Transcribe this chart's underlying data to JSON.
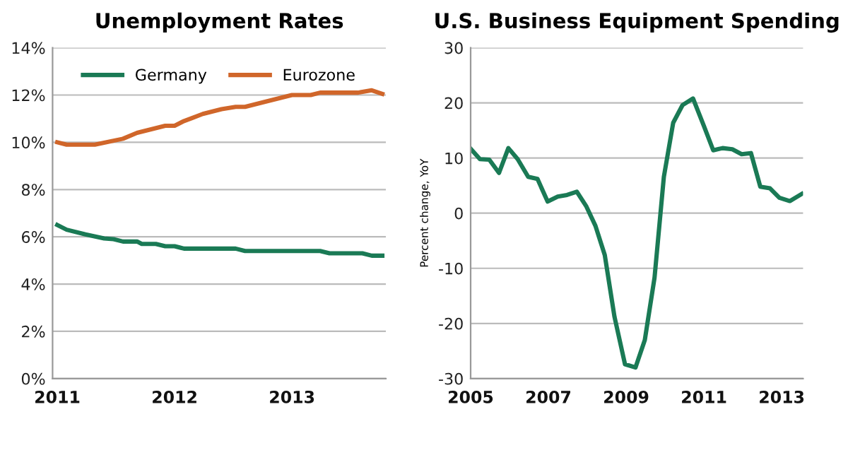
{
  "chart_data": [
    {
      "type": "line",
      "title": "Unemployment Rates",
      "legend": "top",
      "grid": "y",
      "line_style": "solid",
      "marker": "none",
      "xlim": [
        2010.96,
        2013.8
      ],
      "xticks": [
        2011,
        2012,
        2013
      ],
      "ylim": [
        0,
        14
      ],
      "yticks": [
        {
          "value": 0,
          "label": "0%"
        },
        {
          "value": 2,
          "label": "2%"
        },
        {
          "value": 4,
          "label": "4%"
        },
        {
          "value": 6,
          "label": "6%"
        },
        {
          "value": 8,
          "label": "8%"
        },
        {
          "value": 10,
          "label": "10%"
        },
        {
          "value": 12,
          "label": "12%"
        },
        {
          "value": 14,
          "label": "14%"
        }
      ],
      "series": [
        {
          "name": "Germany",
          "color": "#1a7a55",
          "x": [
            2011.0,
            2011.08,
            2011.24,
            2011.4,
            2011.48,
            2011.56,
            2011.68,
            2011.72,
            2011.84,
            2011.92,
            2012.0,
            2012.08,
            2012.52,
            2012.6,
            2013.24,
            2013.32,
            2013.6,
            2013.68,
            2013.77
          ],
          "values": [
            6.5,
            6.3,
            6.1,
            5.93,
            5.9,
            5.8,
            5.8,
            5.7,
            5.7,
            5.6,
            5.6,
            5.5,
            5.5,
            5.4,
            5.4,
            5.3,
            5.3,
            5.2,
            5.2
          ]
        },
        {
          "name": "Eurozone",
          "color": "#d0662a",
          "x": [
            2011.0,
            2011.08,
            2011.32,
            2011.56,
            2011.68,
            2011.8,
            2011.92,
            2012.0,
            2012.08,
            2012.16,
            2012.24,
            2012.4,
            2012.52,
            2012.6,
            2012.76,
            2012.88,
            2013.0,
            2013.16,
            2013.24,
            2013.56,
            2013.68,
            2013.77
          ],
          "values": [
            10.0,
            9.9,
            9.9,
            10.15,
            10.4,
            10.55,
            10.7,
            10.7,
            10.9,
            11.05,
            11.2,
            11.4,
            11.5,
            11.5,
            11.7,
            11.85,
            12.0,
            12.0,
            12.1,
            12.1,
            12.2,
            12.05
          ]
        }
      ]
    },
    {
      "type": "line",
      "title": "U.S. Business Equipment Spending",
      "ylabel": "Percent change, YoY",
      "grid": "y",
      "line_style": "solid",
      "marker": "none",
      "xlim": [
        2005,
        2013.55
      ],
      "xticks": [
        2005,
        2007,
        2009,
        2011,
        2013
      ],
      "ylim": [
        -30,
        30
      ],
      "yticks": [
        -30,
        -20,
        -10,
        0,
        10,
        20,
        30
      ],
      "series": [
        {
          "color": "#1a7a55",
          "x": [
            2005.0,
            2005.24,
            2005.48,
            2005.73,
            2005.97,
            2006.21,
            2006.48,
            2006.72,
            2006.98,
            2007.24,
            2007.48,
            2007.73,
            2007.97,
            2008.21,
            2008.45,
            2008.7,
            2008.97,
            2009.24,
            2009.48,
            2009.73,
            2009.97,
            2010.21,
            2010.45,
            2010.72,
            2011.0,
            2011.24,
            2011.48,
            2011.73,
            2011.97,
            2012.21,
            2012.45,
            2012.7,
            2012.94,
            2013.21,
            2013.52
          ],
          "values": [
            11.7,
            9.8,
            9.7,
            7.3,
            11.8,
            9.8,
            6.6,
            6.2,
            2.1,
            3.0,
            3.3,
            3.9,
            1.3,
            -2.3,
            -7.6,
            -18.8,
            -27.4,
            -28.0,
            -23.0,
            -11.7,
            6.6,
            16.4,
            19.6,
            20.8,
            15.8,
            11.4,
            11.8,
            11.6,
            10.7,
            10.9,
            4.8,
            4.5,
            2.8,
            2.2,
            3.5
          ]
        }
      ]
    }
  ]
}
